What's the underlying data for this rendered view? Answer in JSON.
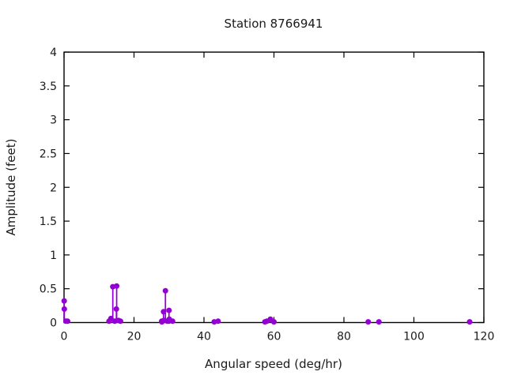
{
  "chart_data": {
    "type": "scatter",
    "style": "impulses-and-points",
    "title": "Station 8766941",
    "xlabel": "Angular speed (deg/hr)",
    "ylabel": "Amplitude (feet)",
    "xlim": [
      0,
      120
    ],
    "ylim": [
      0,
      4
    ],
    "xticks": [
      0,
      20,
      40,
      60,
      80,
      100,
      120
    ],
    "yticks": [
      0,
      0.5,
      1,
      1.5,
      2,
      2.5,
      3,
      3.5,
      4
    ],
    "grid": false,
    "legend_position": "none",
    "marker_color": "#9400d3",
    "border_color": "#000000",
    "points": [
      {
        "x": 0.04,
        "y": 0.32
      },
      {
        "x": 0.08,
        "y": 0.2
      },
      {
        "x": 0.54,
        "y": 0.02
      },
      {
        "x": 1.02,
        "y": 0.02
      },
      {
        "x": 12.85,
        "y": 0.02
      },
      {
        "x": 13.4,
        "y": 0.06
      },
      {
        "x": 13.94,
        "y": 0.53
      },
      {
        "x": 14.49,
        "y": 0.02
      },
      {
        "x": 14.96,
        "y": 0.2
      },
      {
        "x": 15.04,
        "y": 0.54
      },
      {
        "x": 15.58,
        "y": 0.03
      },
      {
        "x": 16.14,
        "y": 0.02
      },
      {
        "x": 27.9,
        "y": 0.02
      },
      {
        "x": 27.97,
        "y": 0.01
      },
      {
        "x": 28.44,
        "y": 0.16
      },
      {
        "x": 28.51,
        "y": 0.03
      },
      {
        "x": 28.98,
        "y": 0.47
      },
      {
        "x": 29.53,
        "y": 0.02
      },
      {
        "x": 29.96,
        "y": 0.02
      },
      {
        "x": 30.0,
        "y": 0.18
      },
      {
        "x": 30.08,
        "y": 0.05
      },
      {
        "x": 31.02,
        "y": 0.02
      },
      {
        "x": 42.93,
        "y": 0.01
      },
      {
        "x": 44.03,
        "y": 0.02
      },
      {
        "x": 57.42,
        "y": 0.01
      },
      {
        "x": 57.97,
        "y": 0.02
      },
      {
        "x": 58.98,
        "y": 0.05
      },
      {
        "x": 60.0,
        "y": 0.01
      },
      {
        "x": 86.95,
        "y": 0.01
      },
      {
        "x": 90.0,
        "y": 0.01
      },
      {
        "x": 115.94,
        "y": 0.01
      }
    ]
  }
}
